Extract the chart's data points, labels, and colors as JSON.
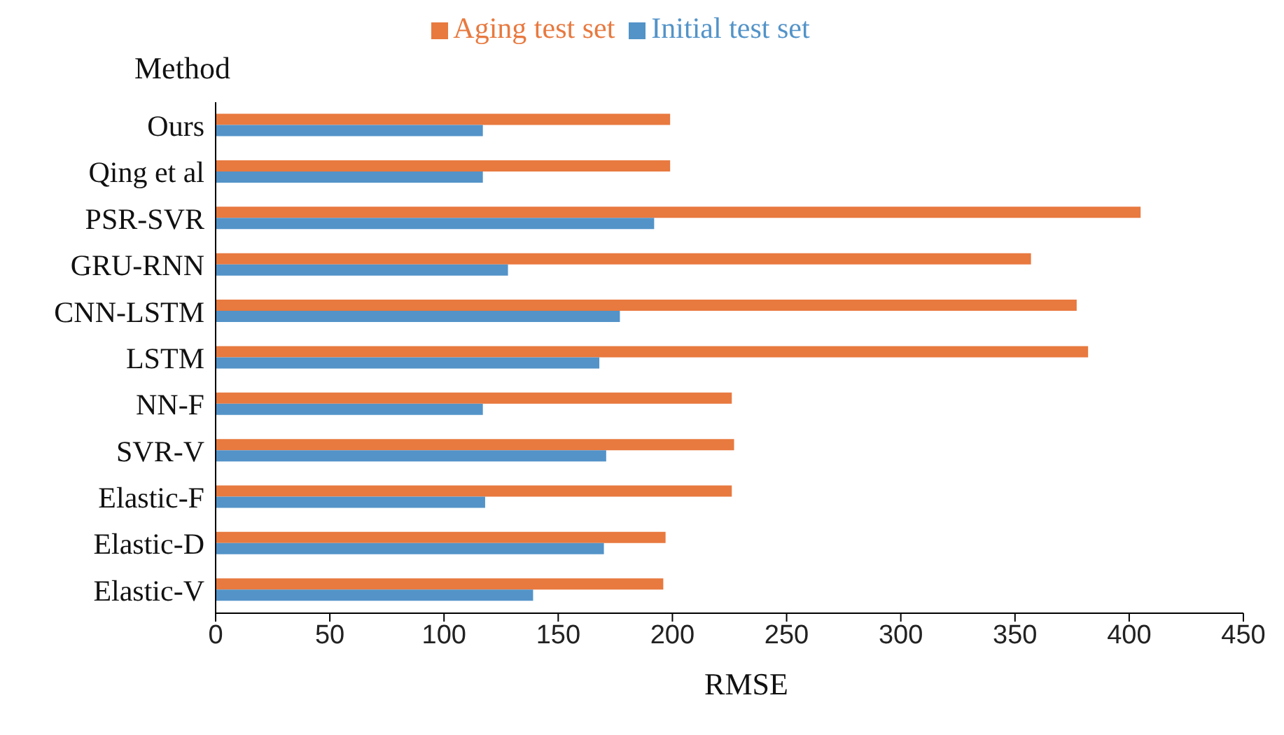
{
  "chart_data": {
    "type": "bar",
    "orientation": "horizontal",
    "ylabel": "Method",
    "xlabel": "RMSE",
    "categories": [
      "Ours",
      "Qing et al",
      "PSR-SVR",
      "GRU-RNN",
      "CNN-LSTM",
      "LSTM",
      "NN-F",
      "SVR-V",
      "Elastic-F",
      "Elastic-D",
      "Elastic-V"
    ],
    "series": [
      {
        "name": "Aging test set",
        "color": "#e8793f",
        "values": [
          199,
          199,
          405,
          357,
          377,
          382,
          226,
          227,
          226,
          197,
          196
        ]
      },
      {
        "name": "Initial test set",
        "color": "#5393c8",
        "values": [
          117,
          117,
          192,
          128,
          177,
          168,
          117,
          171,
          118,
          170,
          139
        ]
      }
    ],
    "xlim": [
      0,
      450
    ],
    "xticks": [
      0,
      50,
      100,
      150,
      200,
      250,
      300,
      350,
      400,
      450
    ],
    "grid": false,
    "legend": "top"
  }
}
